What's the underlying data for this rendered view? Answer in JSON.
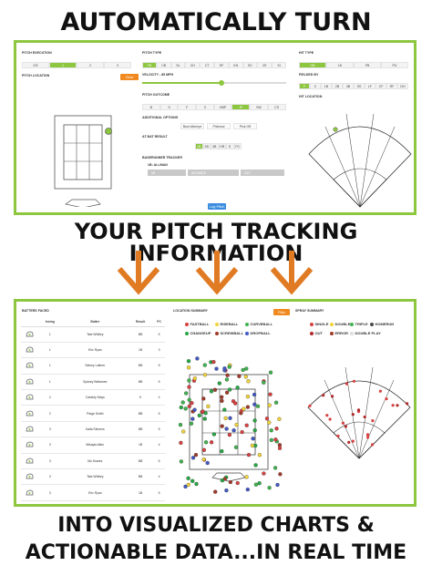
{
  "headlines": {
    "top": "AUTOMATICALLY TURN",
    "middle": "YOUR PITCH TRACKING INFORMATION",
    "bottom_line1": "INTO VISUALIZED CHARTS &",
    "bottom_line2": "ACTIONABLE DATA...IN REAL TIME"
  },
  "colors": {
    "accent": "#8dc63f",
    "arrow": "#e07b24",
    "orange_button": "#f0891f",
    "blue_button": "#3a8dde"
  },
  "tracker": {
    "pitch_execution_label": "PITCH EXECUTION",
    "pitch_execution_options": [
      "0/3",
      "1",
      "2",
      "3"
    ],
    "pitch_execution_selected": 1,
    "pitch_location_label": "PITCH LOCATION",
    "clear_button": "Clear",
    "pitch_type_label": "PITCH TYPE",
    "pitch_type_options": [
      "FB",
      "CB",
      "SL",
      "CH",
      "CT",
      "SF",
      "KN",
      "SC",
      "2S",
      "SI"
    ],
    "pitch_type_selected": 0,
    "velocity_label": "VELOCITY - 85 MPH",
    "velocity_fraction": 0.55,
    "pitch_outcome_label": "PITCH OUTCOME",
    "pitch_outcome_options": [
      "B",
      "S",
      "F",
      "X",
      "HBP",
      "IP",
      "SW",
      "CS"
    ],
    "pitch_outcome_selected": 5,
    "additional_options_label": "ADDITIONAL OPTIONS",
    "additional_options": [
      "Bunt Attempt",
      "Pitchout",
      "Pick Off"
    ],
    "at_bat_result_label": "AT BAT RESULT",
    "at_bat_result_options": [
      "1B",
      "2B",
      "3B",
      "HR",
      "E",
      "FC"
    ],
    "at_bat_result_selected": 0,
    "baserunner_label": "BASERUNNER TRACKER",
    "baserunner_name": "1B: ALLMAN",
    "baserunner_fields": [
      "1B",
      "ADVANCE",
      "OUT"
    ],
    "hit_type_label": "HIT TYPE",
    "hit_type_options": [
      "GB",
      "LD",
      "FB",
      "PU"
    ],
    "hit_type_selected": 0,
    "fielded_by_label": "FIELDED BY",
    "fielded_by_options": [
      "P",
      "C",
      "1B",
      "2B",
      "3B",
      "SS",
      "LF",
      "CF",
      "RF",
      "DH"
    ],
    "fielded_by_selected": 0,
    "hit_location_label": "HIT LOCATION",
    "log_pitch_button": "Log Pitch"
  },
  "dashboard": {
    "batters_faced_label": "BATTERS FACED",
    "columns": [
      "",
      "Inning",
      "Batter",
      "Result",
      "PC"
    ],
    "rows": [
      {
        "inning": "1",
        "batter": "Tate Whitley",
        "result": "BB",
        "pc": "5"
      },
      {
        "inning": "1",
        "batter": "Eric Ryan",
        "result": "1B",
        "pc": "3"
      },
      {
        "inning": "1",
        "batter": "Sidney Lattner",
        "result": "BB",
        "pc": "5"
      },
      {
        "inning": "1",
        "batter": "Sydney Bellamee",
        "result": "BB",
        "pc": "5"
      },
      {
        "inning": "2",
        "batter": "Cassidy Mays",
        "result": "K",
        "pc": "4"
      },
      {
        "inning": "2",
        "batter": "Paige Smith",
        "result": "BB",
        "pc": "5"
      },
      {
        "inning": "3",
        "batter": "Kalia Stevens",
        "result": "BB",
        "pc": "5"
      },
      {
        "inning": "3",
        "batter": "Mikayla Allen",
        "result": "1B",
        "pc": "4"
      },
      {
        "inning": "3",
        "batter": "Mo Suarez",
        "result": "BB",
        "pc": "5"
      },
      {
        "inning": "3",
        "batter": "Tate Whitley",
        "result": "BB",
        "pc": "4"
      },
      {
        "inning": "3",
        "batter": "Eric Ryan",
        "result": "1B",
        "pc": "5"
      },
      {
        "inning": "4",
        "batter": "Sidney Lattner",
        "result": "1B",
        "pc": "5"
      }
    ],
    "location_summary_label": "LOCATION SUMMARY",
    "filter_button": "Filter",
    "pitch_legend": [
      {
        "label": "FASTBALL",
        "color": "#d94141"
      },
      {
        "label": "RISEBALL",
        "color": "#f2d43a"
      },
      {
        "label": "CURVEBALL",
        "color": "#3fb34f"
      },
      {
        "label": "CHANGEUP",
        "color": "#27a844"
      },
      {
        "label": "SCREWBALL",
        "color": "#a23a2a"
      },
      {
        "label": "DROPBALL",
        "color": "#4259c4"
      }
    ],
    "spray_summary_label": "SPRAY SUMMARY",
    "spray_legend": [
      {
        "label": "SINGLE",
        "color": "#d94141"
      },
      {
        "label": "DOUBLE",
        "color": "#f2d43a"
      },
      {
        "label": "TRIPLE",
        "color": "#3fb34f"
      },
      {
        "label": "HOMERUN",
        "color": "#4a4a4a"
      },
      {
        "label": "OUT",
        "color": "#b02a2a"
      },
      {
        "label": "ERROR",
        "color": "#a23a2a"
      },
      {
        "label": "DOUBLE PLAY",
        "color": "#dddddd"
      }
    ]
  }
}
